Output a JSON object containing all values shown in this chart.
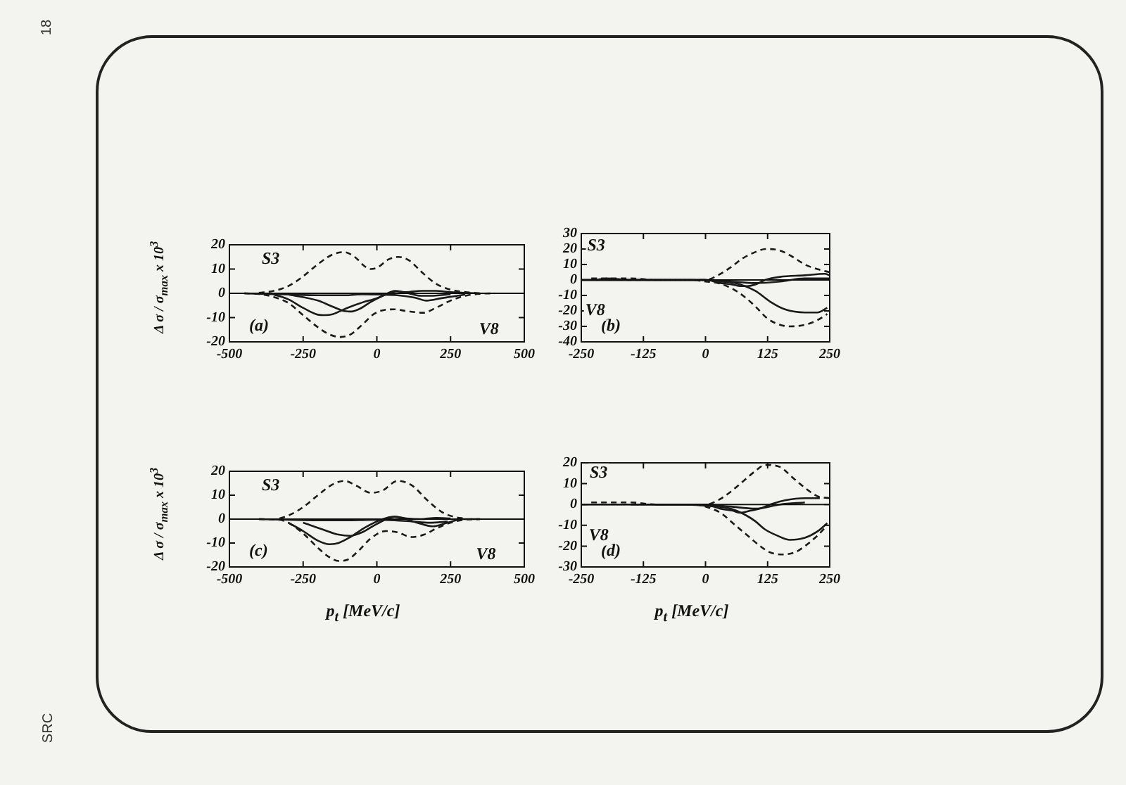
{
  "chart_data": [
    {
      "type": "line",
      "ylabel": "Δ σ / σ$_{max}$ x 10$^{3}$",
      "xlim": [
        -500,
        500
      ],
      "xticks": [
        -500,
        -250,
        0,
        250,
        500
      ],
      "ylim": [
        -20,
        20
      ],
      "yticks": [
        -20,
        -10,
        0,
        10,
        20
      ],
      "ref_lines": [
        {
          "axis": "y",
          "value": 0
        }
      ],
      "annotations": [
        "(a)",
        {
          "text": "S3",
          "x": -360,
          "y": 14
        },
        {
          "text": "V8",
          "x": 380,
          "y": -15
        }
      ],
      "series": [
        {
          "color": "#1a1a1a",
          "line_style": "dashed",
          "x": [
            -400,
            -350,
            -300,
            -250,
            -200,
            -150,
            -112,
            -75,
            -40,
            -22,
            0,
            40,
            73,
            110,
            150,
            200,
            250,
            300,
            350
          ],
          "values": [
            0.2,
            1,
            3,
            7,
            12,
            16,
            17,
            15,
            11,
            10,
            10.5,
            14,
            15,
            13.5,
            9,
            4,
            1.5,
            0.5,
            0
          ]
        },
        {
          "color": "#1a1a1a",
          "line_style": "dashed",
          "x": [
            -450,
            -400,
            -350,
            -300,
            -250,
            -200,
            -160,
            -123,
            -90,
            -50,
            -10,
            28,
            60,
            100,
            157,
            200,
            250,
            300,
            350,
            400
          ],
          "values": [
            0,
            -0.3,
            -1.5,
            -4,
            -9,
            -14,
            -17,
            -18,
            -17,
            -13,
            -8.5,
            -6.8,
            -6.6,
            -7.3,
            -8,
            -6,
            -3,
            -1,
            -0.2,
            0
          ]
        },
        {
          "color": "#1a1a1a",
          "x": [
            -350,
            -300,
            -250,
            -200,
            -175,
            -150,
            -100,
            -50,
            0,
            40,
            65,
            100,
            150,
            180,
            250
          ],
          "values": [
            -0.5,
            -2.5,
            -6,
            -8.8,
            -9,
            -8.6,
            -6,
            -3.8,
            -2,
            0,
            0.8,
            0.2,
            -1,
            -1,
            -0.4
          ]
        },
        {
          "color": "#1a1a1a",
          "x": [
            -300,
            -200,
            -150,
            -110,
            -85,
            -60,
            -20,
            20,
            62,
            100,
            150,
            200,
            250,
            350
          ],
          "values": [
            -0.5,
            -3,
            -5.5,
            -7.3,
            -7.5,
            -6.5,
            -3.5,
            -1,
            1,
            0.5,
            1,
            1,
            0.5,
            0
          ]
        },
        {
          "color": "#1a1a1a",
          "x": [
            -450,
            -300,
            -200,
            -100,
            -50,
            0,
            70,
            130,
            168,
            220,
            300
          ],
          "values": [
            0,
            -0.5,
            -0.8,
            -0.8,
            -0.4,
            -0.5,
            -0.8,
            -1.8,
            -3,
            -2,
            -0.5
          ]
        }
      ]
    },
    {
      "type": "line",
      "xlim": [
        -250,
        250
      ],
      "xticks": [
        -250,
        -125,
        0,
        125,
        250
      ],
      "ylim": [
        -40,
        30
      ],
      "yticks": [
        -40,
        -30,
        -20,
        -10,
        0,
        10,
        20,
        30
      ],
      "ref_lines": [
        {
          "axis": "y",
          "value": 0
        }
      ],
      "annotations": [
        "(b)",
        {
          "text": "S3",
          "x": -220,
          "y": 22
        },
        {
          "text": "V8",
          "x": -222,
          "y": -20
        }
      ],
      "series": [
        {
          "color": "#1a1a1a",
          "line_style": "dashed",
          "x": [
            -230,
            -200,
            -150,
            -100,
            -50,
            0,
            25,
            50,
            75,
            100,
            121,
            150,
            175,
            200,
            225,
            250
          ],
          "values": [
            1,
            1,
            1,
            0,
            0,
            0,
            3,
            8,
            14,
            18,
            20,
            19,
            15,
            10,
            7,
            5
          ]
        },
        {
          "color": "#1a1a1a",
          "line_style": "dashed",
          "x": [
            -220,
            -200,
            -150,
            -100,
            -30,
            0,
            25,
            50,
            75,
            100,
            125,
            150,
            170,
            200,
            225,
            245
          ],
          "values": [
            0,
            1,
            0,
            0,
            0,
            -1,
            -2,
            -5,
            -10,
            -17,
            -25,
            -29,
            -30,
            -29,
            -26,
            -22
          ]
        },
        {
          "color": "#1a1a1a",
          "x": [
            -250,
            -150,
            -50,
            0,
            30,
            60,
            100,
            130,
            160,
            200,
            225,
            245
          ],
          "values": [
            0,
            0,
            0,
            0,
            -1,
            -2,
            -7,
            -14,
            -19,
            -21,
            -21,
            -18
          ]
        },
        {
          "color": "#1a1a1a",
          "x": [
            -250,
            -150,
            -50,
            0,
            30,
            55,
            70,
            85,
            100,
            120,
            150,
            200,
            240,
            250
          ],
          "values": [
            0,
            0,
            0,
            0,
            -2,
            -3,
            -4,
            -4,
            -3,
            0,
            2,
            3,
            4,
            3
          ]
        },
        {
          "color": "#1a1a1a",
          "x": [
            -250,
            -100,
            0,
            50,
            100,
            150,
            200,
            250
          ],
          "values": [
            0,
            0,
            0,
            -1,
            -2,
            -1,
            1,
            1
          ]
        }
      ]
    },
    {
      "type": "line",
      "ylabel": "Δ σ / σ$_{max}$ x 10$^{3}$",
      "xlabel": "p$_{t}$ [MeV/c]",
      "xlim": [
        -500,
        500
      ],
      "xticks": [
        -500,
        -250,
        0,
        250,
        500
      ],
      "ylim": [
        -20,
        20
      ],
      "yticks": [
        -20,
        -10,
        0,
        10,
        20
      ],
      "ref_lines": [
        {
          "axis": "y",
          "value": 0
        }
      ],
      "annotations": [
        "(c)",
        {
          "text": "S3",
          "x": -360,
          "y": 14
        },
        {
          "text": "V8",
          "x": 370,
          "y": -15
        }
      ],
      "series": [
        {
          "color": "#1a1a1a",
          "line_style": "dashed",
          "x": [
            -330,
            -300,
            -250,
            -200,
            -150,
            -110,
            -70,
            -20,
            20,
            70,
            120,
            170,
            220,
            260,
            300
          ],
          "values": [
            0.3,
            1.5,
            5,
            10,
            14.5,
            16,
            14,
            11,
            12,
            16,
            14,
            8,
            3,
            1,
            0.2
          ]
        },
        {
          "color": "#1a1a1a",
          "line_style": "dashed",
          "x": [
            -400,
            -330,
            -300,
            -250,
            -200,
            -160,
            -130,
            -100,
            -60,
            -20,
            30,
            70,
            117,
            160,
            200,
            250,
            300,
            350
          ],
          "values": [
            0,
            -0.3,
            -1.5,
            -6,
            -12,
            -16,
            -17.5,
            -17,
            -13,
            -8,
            -5,
            -5.5,
            -7.5,
            -6.5,
            -4,
            -1.5,
            -0.2,
            0
          ]
        },
        {
          "color": "#1a1a1a",
          "x": [
            -300,
            -250,
            -200,
            -160,
            -130,
            -90,
            -40,
            20,
            60,
            100,
            150,
            200,
            250
          ],
          "values": [
            -1.5,
            -5,
            -9,
            -10.5,
            -10,
            -7.5,
            -3.5,
            0,
            1,
            0.3,
            0,
            0.5,
            0.3
          ]
        },
        {
          "color": "#1a1a1a",
          "x": [
            -250,
            -180,
            -130,
            -90,
            -50,
            0,
            60,
            100,
            150,
            190,
            240,
            290,
            350
          ],
          "values": [
            -1.5,
            -4.5,
            -6.5,
            -7,
            -5.5,
            -2,
            1,
            0,
            -2,
            -3,
            -1.5,
            0,
            0
          ]
        },
        {
          "color": "#1a1a1a",
          "x": [
            -400,
            -300,
            -200,
            -100,
            0,
            60,
            120,
            180,
            240
          ],
          "values": [
            0,
            -0.3,
            -0.5,
            -0.5,
            -0.3,
            -0.5,
            -1,
            -1.5,
            -1
          ]
        }
      ]
    },
    {
      "type": "line",
      "xlabel": "p$_{t}$ [MeV/c]",
      "xlim": [
        -250,
        250
      ],
      "xticks": [
        -250,
        -125,
        0,
        125,
        250
      ],
      "ylim": [
        -30,
        20
      ],
      "yticks": [
        -30,
        -20,
        -10,
        0,
        10,
        20
      ],
      "ref_lines": [
        {
          "axis": "y",
          "value": 0
        }
      ],
      "annotations": [
        "(d)",
        {
          "text": "S3",
          "x": -215,
          "y": 15
        },
        {
          "text": "V8",
          "x": -215,
          "y": -15
        }
      ],
      "series": [
        {
          "color": "#1a1a1a",
          "line_style": "dashed",
          "x": [
            -230,
            -200,
            -150,
            -100,
            -50,
            0,
            25,
            50,
            75,
            100,
            120,
            150,
            175,
            200,
            225,
            250
          ],
          "values": [
            1,
            1,
            1,
            0,
            0,
            0,
            2,
            6,
            11,
            16,
            19,
            18,
            13,
            8,
            4,
            3
          ]
        },
        {
          "color": "#1a1a1a",
          "line_style": "dashed",
          "x": [
            -100,
            -20,
            0,
            30,
            60,
            90,
            110,
            130,
            155,
            180,
            200,
            225,
            245
          ],
          "values": [
            0,
            0,
            -1,
            -4,
            -10,
            -16,
            -20,
            -23,
            -24,
            -23,
            -20,
            -15,
            -10
          ]
        },
        {
          "color": "#1a1a1a",
          "x": [
            -250,
            -150,
            -50,
            20,
            50,
            80,
            100,
            120,
            145,
            170,
            200,
            225,
            245
          ],
          "values": [
            0,
            0,
            0,
            -1,
            -2,
            -5,
            -8,
            -12,
            -15,
            -17,
            -16,
            -13,
            -9
          ]
        },
        {
          "color": "#1a1a1a",
          "x": [
            -150,
            -50,
            0,
            30,
            55,
            70,
            90,
            110,
            130,
            160,
            200,
            230
          ],
          "values": [
            0,
            0,
            0,
            -2,
            -3,
            -4,
            -3,
            -2,
            0,
            2,
            3,
            3
          ]
        },
        {
          "color": "#1a1a1a",
          "x": [
            -100,
            0,
            50,
            100,
            150,
            200
          ],
          "values": [
            0,
            0,
            -1,
            -2,
            0,
            1
          ]
        }
      ]
    },
    {
      "type": "other",
      "annotations": [
        "18",
        "SRC"
      ]
    }
  ]
}
